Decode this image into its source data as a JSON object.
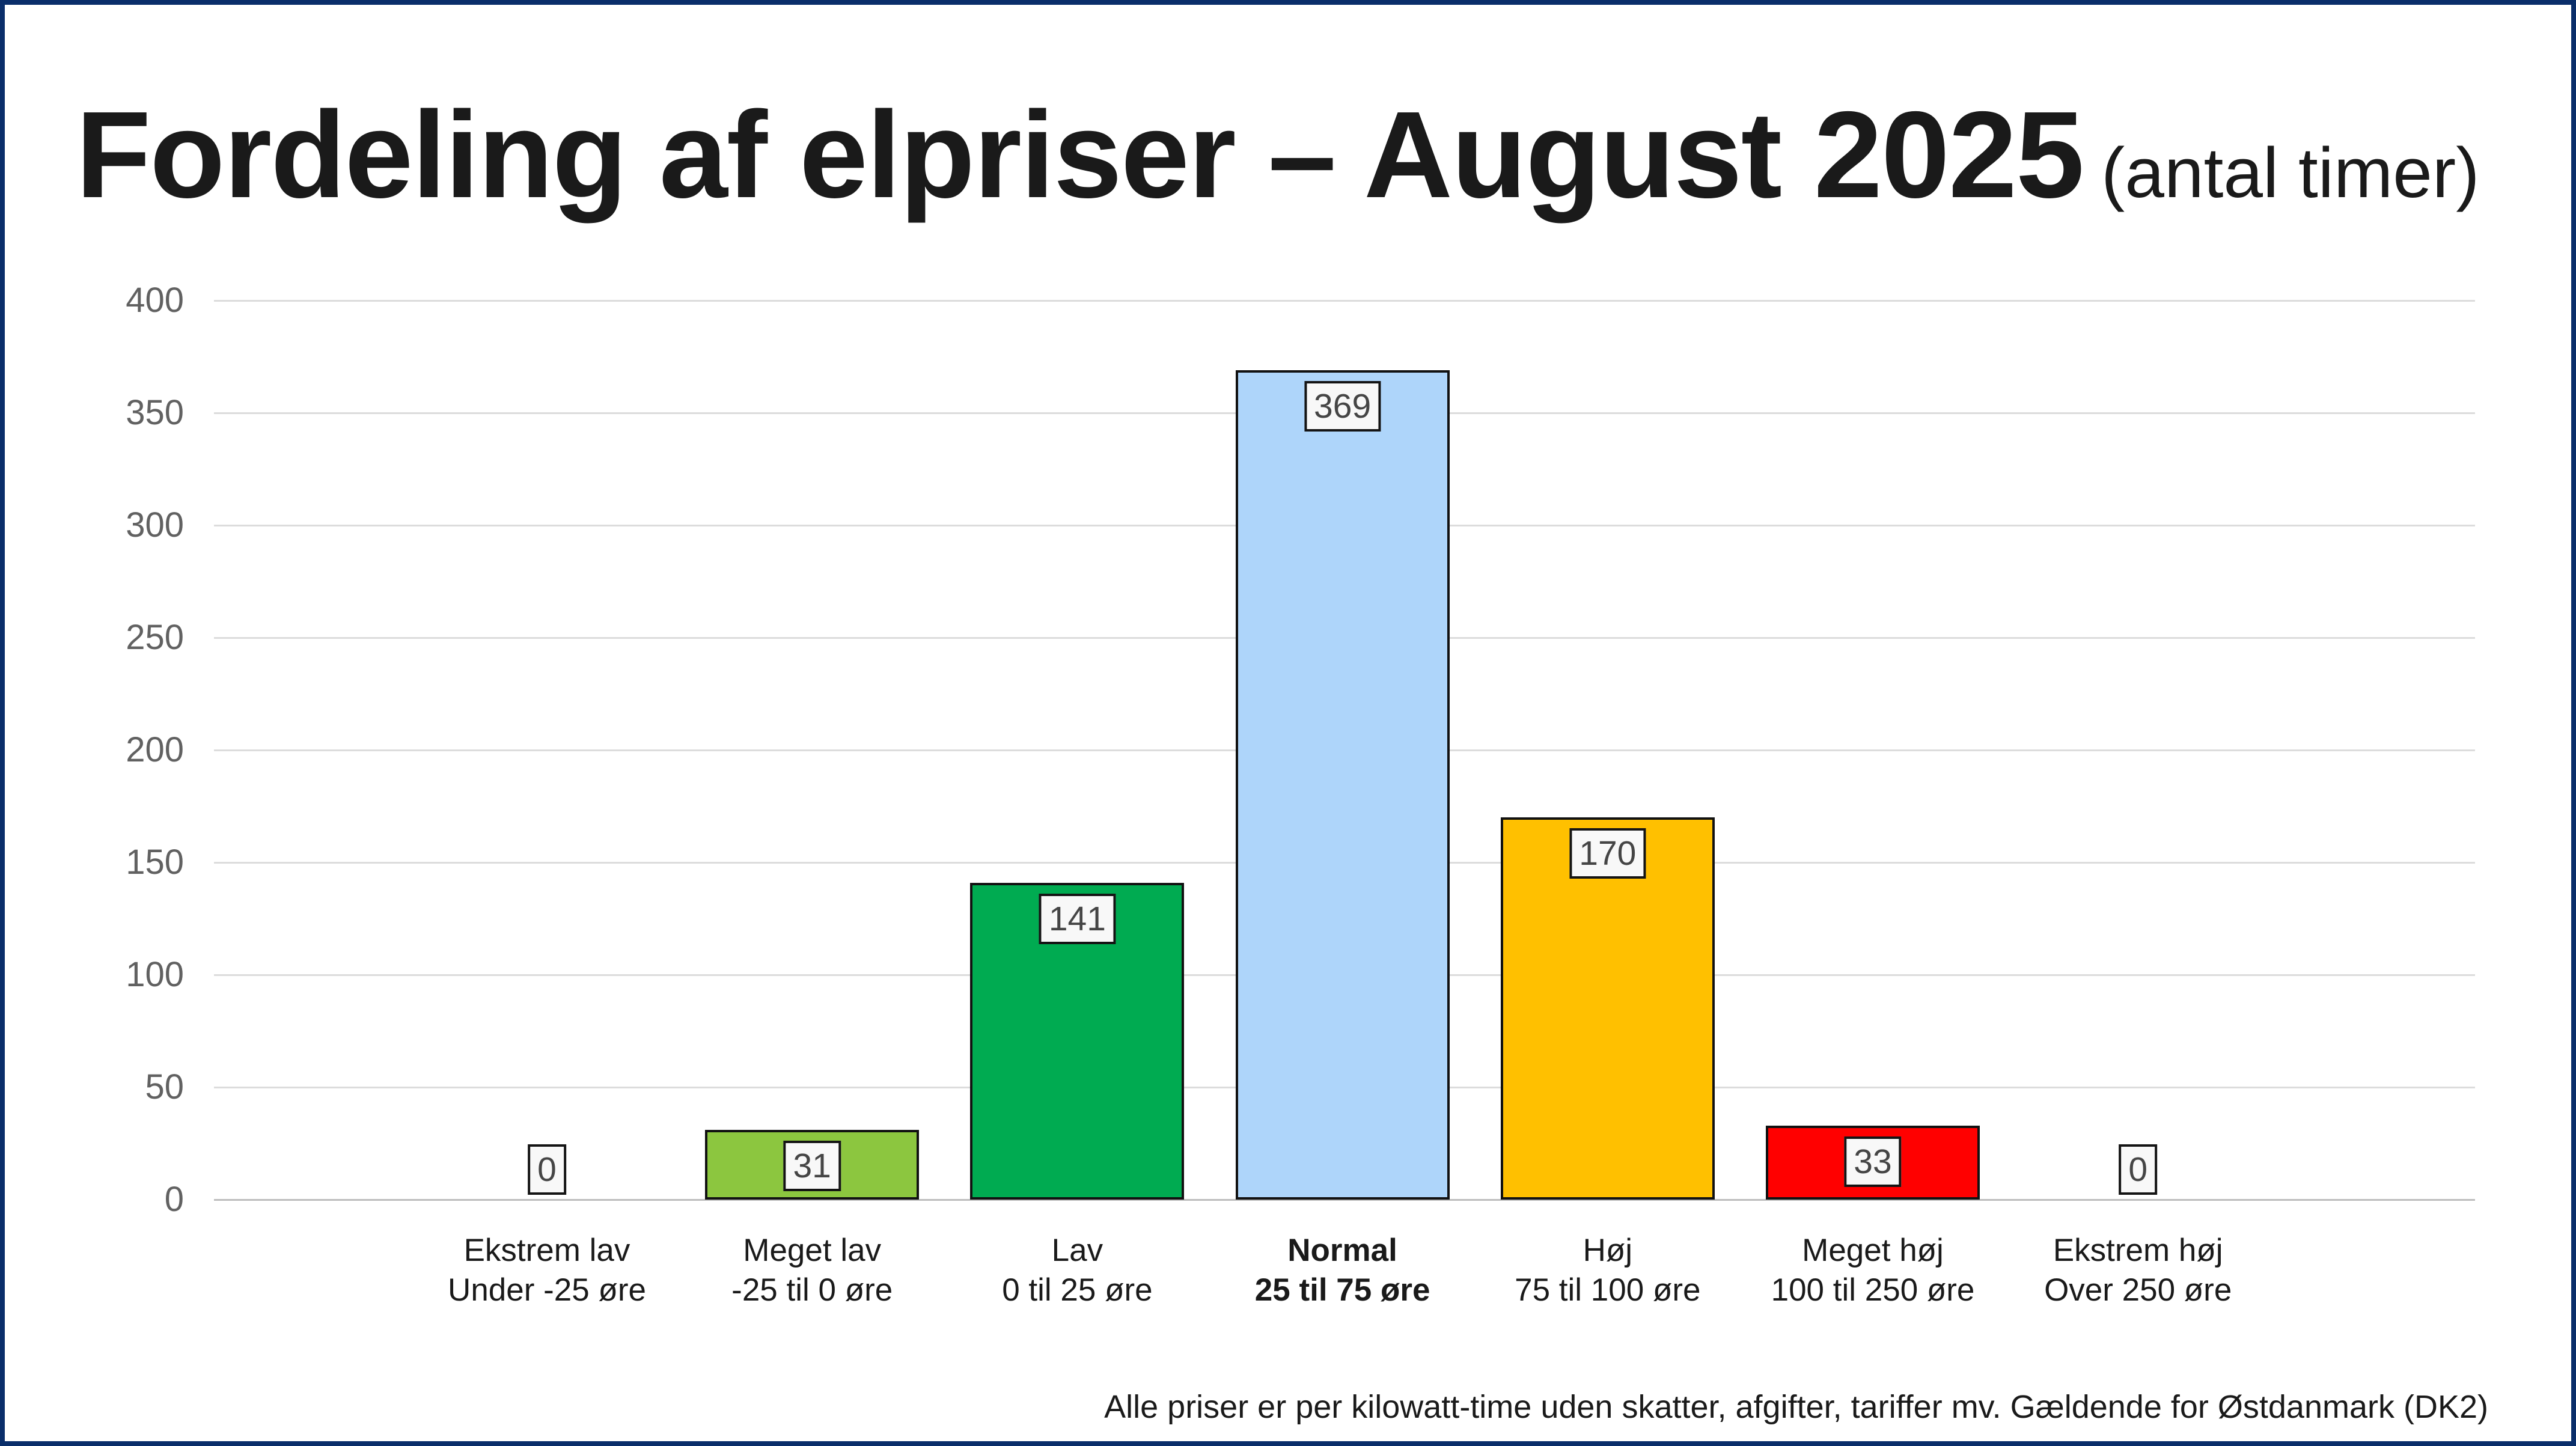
{
  "frame": {
    "border_color": "#0A2E6A",
    "background_color": "#FFFFFF"
  },
  "header": {
    "title": "Fordeling af elpriser – August 2025",
    "subtitle": "(antal timer)"
  },
  "footer": {
    "note": "Alle priser er per kilowatt-time uden skatter, afgifter, tariffer mv. Gældende for Østdanmark (DK2)"
  },
  "chart_data": {
    "type": "bar",
    "title": "Fordeling af elpriser – August 2025",
    "subtitle": "(antal timer)",
    "xlabel": "",
    "ylabel": "",
    "ylim": [
      0,
      400
    ],
    "ytick_step": 50,
    "yticks": [
      400,
      350,
      300,
      250,
      200,
      150,
      100,
      50,
      0
    ],
    "grid": true,
    "legend": false,
    "value_label_style": "boxed",
    "value_label_colors": {
      "background": "#F8F8F8",
      "border": "#141414",
      "text": "#454545"
    },
    "bar_border_color": "#111111",
    "gridline_color": "#DCDCDC",
    "axis_line_color": "#BDBDBD",
    "categories": [
      {
        "id": "ekstrem-lav",
        "label": "Ekstrem lav",
        "sublabel": "Under -25 øre",
        "value": 0,
        "color": "none",
        "emphasis": false
      },
      {
        "id": "meget-lav",
        "label": "Meget lav",
        "sublabel": "-25 til 0 øre",
        "value": 31,
        "color": "#8CC63F",
        "emphasis": false
      },
      {
        "id": "lav",
        "label": "Lav",
        "sublabel": "0 til 25 øre",
        "value": 141,
        "color": "#00AB51",
        "emphasis": false
      },
      {
        "id": "normal",
        "label": "Normal",
        "sublabel": "25 til 75 øre",
        "value": 369,
        "color": "#AED5FA",
        "emphasis": true
      },
      {
        "id": "hoej",
        "label": "Høj",
        "sublabel": "75 til 100 øre",
        "value": 170,
        "color": "#FFC000",
        "emphasis": false
      },
      {
        "id": "meget-hoej",
        "label": "Meget høj",
        "sublabel": "100 til 250 øre",
        "value": 33,
        "color": "#FF0000",
        "emphasis": false
      },
      {
        "id": "ekstrem-hoej",
        "label": "Ekstrem høj",
        "sublabel": "Over 250 øre",
        "value": 0,
        "color": "none",
        "emphasis": false
      }
    ]
  }
}
